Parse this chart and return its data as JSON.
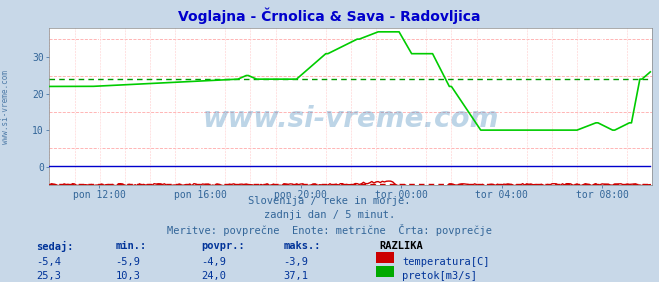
{
  "title": "Voglajna - Črnolica & Sava - Radovljica",
  "title_color": "#0000cc",
  "bg_color": "#c8d8e8",
  "plot_bg_color": "#ffffff",
  "grid_color_major": "#ffffff",
  "grid_color_minor": "#ffaaaa",
  "xlabel_ticks": [
    "pon 12:00",
    "pon 16:00",
    "pon 20:00",
    "tor 00:00",
    "tor 04:00",
    "tor 08:00"
  ],
  "xlabel_ticks_frac": [
    0.083,
    0.25,
    0.417,
    0.583,
    0.75,
    0.917
  ],
  "ylabel_ticks": [
    0,
    10,
    20,
    30
  ],
  "ylim": [
    -5,
    38
  ],
  "xlim": [
    0,
    288
  ],
  "watermark": "www.si-vreme.com",
  "watermark_color": "#4488bb",
  "watermark_alpha": 0.35,
  "subtitle1": "Slovenija / reke in morje.",
  "subtitle2": "zadnji dan / 5 minut.",
  "subtitle3": "Meritve: povprečne  Enote: metrične  Črta: povprečje",
  "subtitle_color": "#336699",
  "legend_header": "RAZLIKA",
  "legend_items": [
    {
      "label": "temperatura[C]",
      "color": "#cc0000"
    },
    {
      "label": "pretok[m3/s]",
      "color": "#00aa00"
    }
  ],
  "stats_headers": [
    "sedaj:",
    "min.:",
    "povpr.:",
    "maks.:"
  ],
  "stats_temp": [
    "-5,4",
    "-5,9",
    "-4,9",
    "-3,9"
  ],
  "stats_flow": [
    "25,3",
    "10,3",
    "24,0",
    "37,1"
  ],
  "stats_color": "#003399",
  "avg_temp": -4.9,
  "avg_flow": 24.0,
  "temp_color": "#cc0000",
  "flow_color": "#00cc00",
  "avg_color_temp": "#cc0000",
  "avg_color_flow": "#009900",
  "sidebar_text": "www.si-vreme.com",
  "sidebar_color": "#336699"
}
